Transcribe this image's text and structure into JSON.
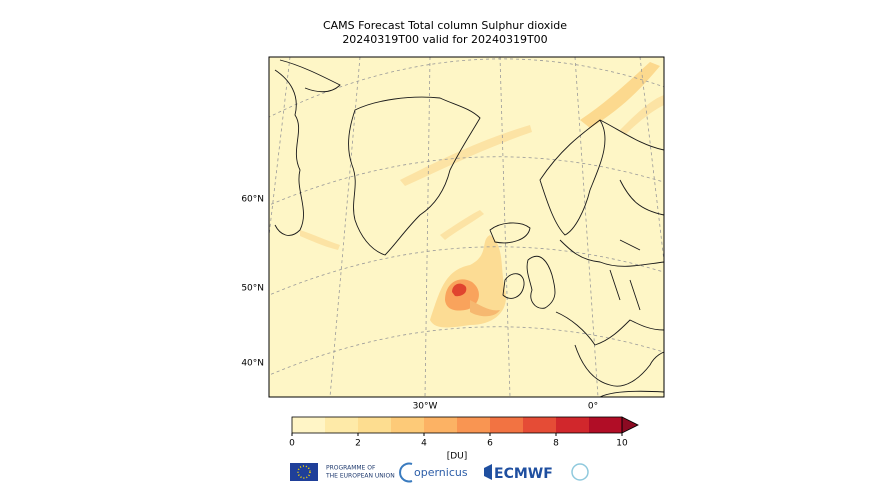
{
  "title": [
    "CAMS Forecast Total column Sulphur dioxide",
    "20240319T00 valid for 20240319T00"
  ],
  "map": {
    "lat_labels": [
      "60°N",
      "50°N",
      "40°N"
    ],
    "lon_labels": [
      "30°W",
      "0°"
    ]
  },
  "colorbar": {
    "label": "[DU]",
    "lim": [
      0,
      10
    ],
    "ticks": [
      0,
      2,
      4,
      6,
      8,
      10
    ],
    "levels": [
      0,
      1,
      2,
      3,
      4,
      5,
      6,
      7,
      8,
      9,
      10
    ],
    "colors": [
      "#fff5c6",
      "#feeaa8",
      "#fddd90",
      "#fdca78",
      "#fcb264",
      "#f99552",
      "#f27342",
      "#e54c36",
      "#d1272c",
      "#b10d26"
    ],
    "extend_color": "#8c0a22"
  },
  "footer": {
    "eu": [
      "PROGRAMME OF",
      "THE EUROPEAN UNION"
    ],
    "copernicus": "opernicus",
    "ecmwf": "ECMWF"
  }
}
